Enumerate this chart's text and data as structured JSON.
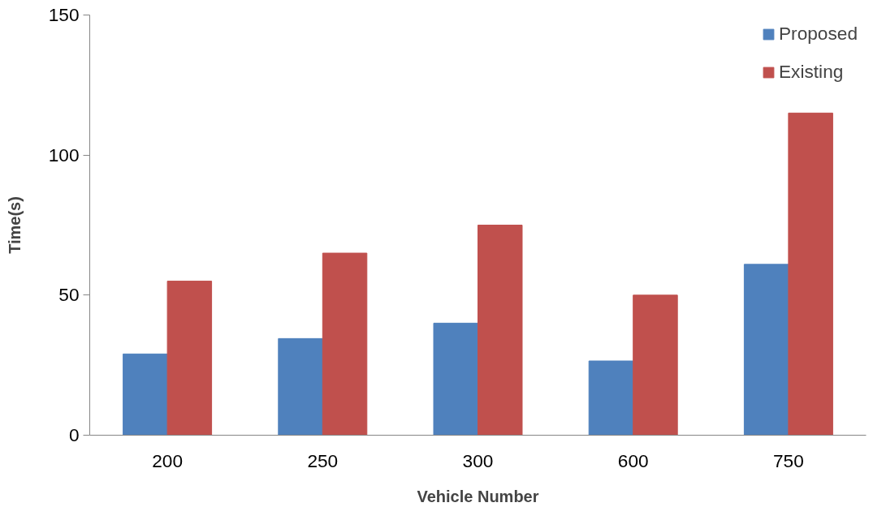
{
  "chart_data": {
    "type": "bar",
    "xlabel": "Vehicle Number",
    "ylabel": "Time(s)",
    "categories": [
      "200",
      "250",
      "300",
      "600",
      "750"
    ],
    "series": [
      {
        "name": "Proposed",
        "color": "#4f81bd",
        "values": [
          29,
          34.5,
          40,
          26.5,
          61
        ]
      },
      {
        "name": "Existing",
        "color": "#c0504d",
        "values": [
          55,
          65,
          75,
          50,
          115
        ]
      }
    ],
    "ylim": [
      0,
      150
    ],
    "yticks": [
      0,
      50,
      100,
      150
    ],
    "grid": false,
    "legend": "top right"
  }
}
